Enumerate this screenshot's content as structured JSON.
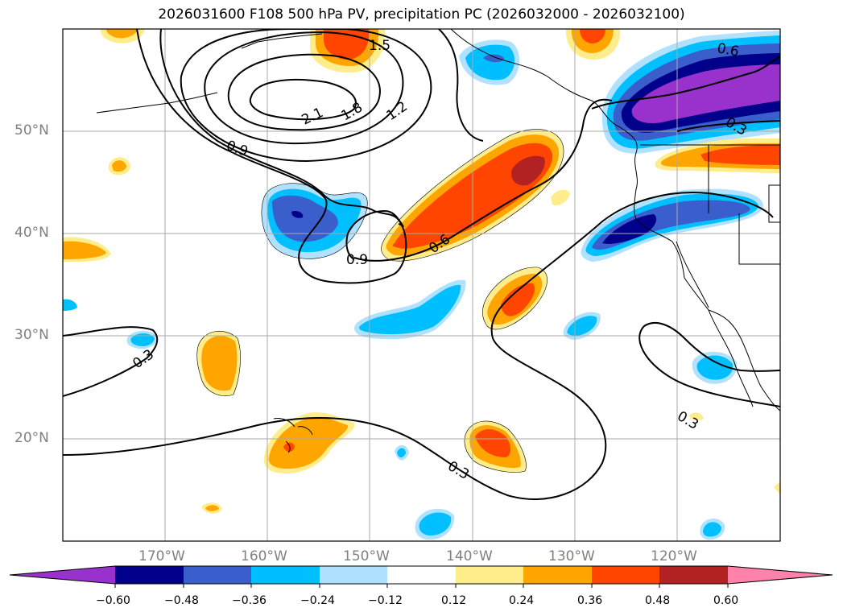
{
  "title": "2026031600 F108 500 hPa PV, precipitation PC (2026032000 - 2026032100)",
  "map": {
    "lon_range": [
      180,
      110
    ],
    "lat_range": [
      10,
      60
    ],
    "latitude_labels": [
      "50°N",
      "40°N",
      "30°N",
      "20°N"
    ],
    "longitude_labels": [
      "170°W",
      "160°W",
      "150°W",
      "140°W",
      "130°W",
      "120°W"
    ],
    "gridlines": true,
    "coastlines": true,
    "contour_labels": [
      "1.5",
      "2.1",
      "1.8",
      "1.2",
      "0.9",
      "0.6",
      "0.9",
      "0.3",
      "0.3",
      "0.3",
      "0.6",
      "0.3"
    ]
  },
  "colorbar": {
    "extend": "both",
    "ticks": [
      "−0.60",
      "−0.48",
      "−0.36",
      "−0.24",
      "−0.12",
      "0.12",
      "0.24",
      "0.36",
      "0.48",
      "0.60"
    ],
    "colors": [
      "#9932CC",
      "#00008B",
      "#3A5FCD",
      "#00BFFF",
      "#B0E2FF",
      "#FFFFFF",
      "#FFEC8B",
      "#FFA500",
      "#FF4500",
      "#B22222",
      "#FF82AB"
    ]
  }
}
